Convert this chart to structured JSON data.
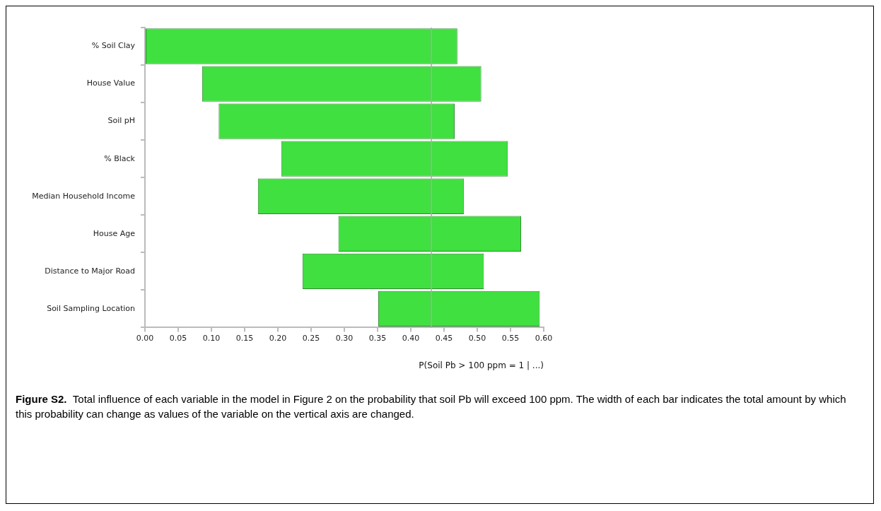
{
  "chart_data": {
    "type": "bar",
    "orientation": "horizontal",
    "categories": [
      "% Soil Clay",
      "House Value",
      "Soil pH",
      "% Black",
      "Median Household Income",
      "House Age",
      "Distance to Major Road",
      "Soil Sampling Location"
    ],
    "base": [
      0,
      0.086,
      0.111,
      0.205,
      0.17,
      0.291,
      0.237,
      0.351
    ],
    "values": [
      0.47,
      0.42,
      0.355,
      0.341,
      0.31,
      0.275,
      0.273,
      0.243
    ],
    "color": "#3fe03f",
    "xlim": [
      0,
      0.6
    ],
    "xticks": [
      {
        "value": 0,
        "label": "0.00"
      },
      {
        "value": 0.05,
        "label": "0.05"
      },
      {
        "value": 0.1,
        "label": "0.10"
      },
      {
        "value": 0.15,
        "label": "0.15"
      },
      {
        "value": 0.2,
        "label": "0.20"
      },
      {
        "value": 0.25,
        "label": "0.25"
      },
      {
        "value": 0.3,
        "label": "0.30"
      },
      {
        "value": 0.35,
        "label": "0.35"
      },
      {
        "value": 0.4,
        "label": "0.40"
      },
      {
        "value": 0.45,
        "label": "0.45"
      },
      {
        "value": 0.5,
        "label": "0.50"
      },
      {
        "value": 0.55,
        "label": "0.55"
      },
      {
        "value": 0.6,
        "label": "0.60"
      }
    ],
    "xlabel": "P(Soil Pb > 100 ppm = 1 | ...)",
    "ref_lines": [
      {
        "axis": "x",
        "value": 0.431,
        "color": "#aaaaaa"
      }
    ],
    "annotations": [
      "Figure S2.",
      "Total influence of each variable in the model in Figure 2 on the probability that soil Pb will exceed 100 ppm.  The width of each bar indicates the total amount by which this probability can change as values of the variable on the vertical axis are changed."
    ]
  }
}
